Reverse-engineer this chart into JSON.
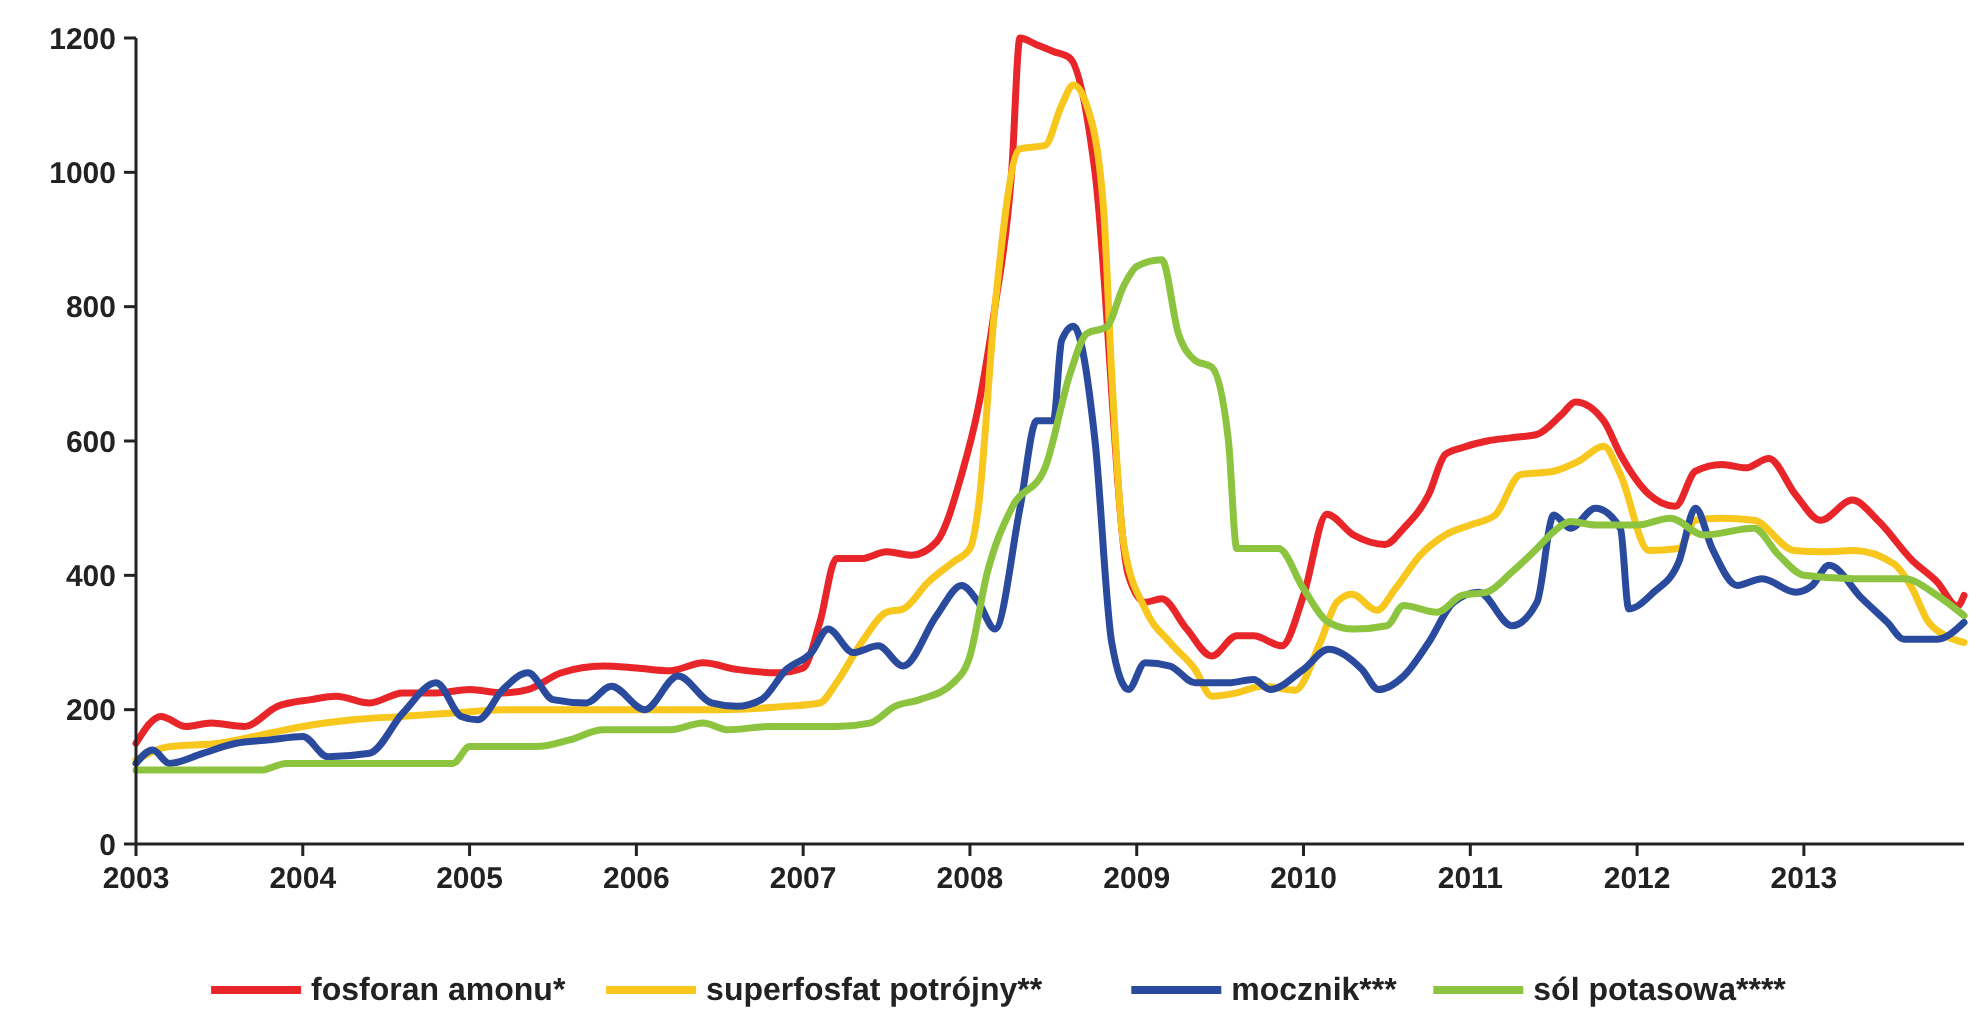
{
  "chart_data": {
    "type": "line",
    "xlim": [
      2003,
      2013.96
    ],
    "xticks": [
      2003,
      2004,
      2005,
      2006,
      2007,
      2008,
      2009,
      2010,
      2011,
      2012,
      2013
    ],
    "ylim": [
      0,
      1200
    ],
    "yticks": [
      0,
      200,
      400,
      600,
      800,
      1000,
      1200
    ],
    "grid": false,
    "legend": "bottom",
    "marker": "none",
    "line_style": "solid",
    "series": [
      {
        "name": "fosforan amonu*",
        "color": "#e8262a",
        "x": [
          2003.0,
          2003.15,
          2003.3,
          2003.45,
          2003.65,
          2003.85,
          2004.05,
          2004.2,
          2004.4,
          2004.6,
          2004.8,
          2005.0,
          2005.2,
          2005.35,
          2005.55,
          2005.8,
          2006.0,
          2006.2,
          2006.4,
          2006.6,
          2006.85,
          2007.0,
          2007.1,
          2007.2,
          2007.35,
          2007.5,
          2007.65,
          2007.8,
          2007.95,
          2008.05,
          2008.15,
          2008.25,
          2008.3,
          2008.4,
          2008.5,
          2008.6,
          2008.75,
          2008.95,
          2009.05,
          2009.15,
          2009.3,
          2009.45,
          2009.6,
          2009.7,
          2009.87,
          2010.0,
          2010.14,
          2010.3,
          2010.49,
          2010.6,
          2010.75,
          2010.85,
          2010.95,
          2011.1,
          2011.25,
          2011.4,
          2011.55,
          2011.63,
          2011.8,
          2011.9,
          2012.07,
          2012.23,
          2012.35,
          2012.51,
          2012.65,
          2012.79,
          2012.95,
          2013.1,
          2013.29,
          2013.45,
          2013.65,
          2013.8,
          2013.92,
          2013.96
        ],
        "values": [
          150,
          190,
          175,
          180,
          175,
          205,
          215,
          220,
          210,
          225,
          225,
          230,
          225,
          230,
          255,
          265,
          262,
          258,
          270,
          260,
          255,
          262,
          330,
          425,
          425,
          435,
          430,
          450,
          550,
          650,
          800,
          1000,
          1200,
          1190,
          1180,
          1170,
          1000,
          400,
          360,
          365,
          320,
          280,
          310,
          310,
          295,
          370,
          491,
          460,
          446,
          470,
          520,
          580,
          590,
          600,
          605,
          610,
          640,
          658,
          630,
          580,
          521,
          503,
          555,
          565,
          560,
          574,
          520,
          482,
          512,
          480,
          422,
          390,
          354,
          370
        ]
      },
      {
        "name": "superfosfat potrójny**",
        "color": "#f8c71d",
        "x": [
          2003.0,
          2003.2,
          2003.5,
          2003.8,
          2004.0,
          2004.3,
          2004.6,
          2004.9,
          2005.2,
          2005.6,
          2006.0,
          2006.5,
          2006.9,
          2007.1,
          2007.2,
          2007.35,
          2007.5,
          2007.6,
          2007.75,
          2007.9,
          2008.0,
          2008.05,
          2008.15,
          2008.3,
          2008.45,
          2008.55,
          2008.62,
          2008.7,
          2008.8,
          2008.85,
          2008.92,
          2009.05,
          2009.2,
          2009.35,
          2009.45,
          2009.6,
          2009.75,
          2009.95,
          2010.1,
          2010.2,
          2010.29,
          2010.44,
          2010.55,
          2010.7,
          2010.85,
          2011.0,
          2011.15,
          2011.3,
          2011.5,
          2011.65,
          2011.8,
          2011.9,
          2012.07,
          2012.25,
          2012.35,
          2012.5,
          2012.7,
          2012.94,
          2013.1,
          2013.3,
          2013.54,
          2013.65,
          2013.74,
          2013.85,
          2013.96
        ],
        "values": [
          125,
          145,
          150,
          165,
          175,
          185,
          190,
          195,
          200,
          200,
          200,
          200,
          205,
          210,
          240,
          300,
          345,
          350,
          390,
          420,
          440,
          500,
          800,
          1035,
          1040,
          1100,
          1130,
          1100,
          950,
          700,
          450,
          350,
          300,
          260,
          220,
          225,
          235,
          229,
          300,
          360,
          372,
          348,
          380,
          430,
          460,
          475,
          490,
          550,
          555,
          570,
          592,
          550,
          437,
          440,
          482,
          485,
          482,
          437,
          435,
          437,
          417,
          380,
          333,
          310,
          300
        ]
      },
      {
        "name": "mocznik***",
        "color": "#2a4a9e",
        "x": [
          2003.0,
          2003.1,
          2003.2,
          2003.4,
          2003.6,
          2003.8,
          2004.0,
          2004.15,
          2004.4,
          2004.6,
          2004.8,
          2004.95,
          2005.05,
          2005.2,
          2005.35,
          2005.5,
          2005.7,
          2005.85,
          2006.05,
          2006.25,
          2006.45,
          2006.6,
          2006.75,
          2006.9,
          2007.05,
          2007.15,
          2007.3,
          2007.45,
          2007.6,
          2007.8,
          2007.95,
          2008.05,
          2008.15,
          2008.3,
          2008.4,
          2008.5,
          2008.55,
          2008.62,
          2008.75,
          2008.85,
          2008.95,
          2009.05,
          2009.2,
          2009.35,
          2009.55,
          2009.7,
          2009.8,
          2010.0,
          2010.15,
          2010.35,
          2010.45,
          2010.6,
          2010.75,
          2010.9,
          2011.05,
          2011.25,
          2011.4,
          2011.5,
          2011.6,
          2011.75,
          2011.9,
          2011.95,
          2012.1,
          2012.25,
          2012.35,
          2012.45,
          2012.6,
          2012.75,
          2012.95,
          2013.05,
          2013.15,
          2013.35,
          2013.5,
          2013.6,
          2013.8,
          2013.96
        ],
        "values": [
          120,
          140,
          120,
          135,
          150,
          155,
          160,
          130,
          135,
          195,
          240,
          190,
          185,
          230,
          255,
          215,
          210,
          235,
          200,
          250,
          210,
          205,
          215,
          260,
          285,
          320,
          285,
          295,
          265,
          340,
          385,
          360,
          320,
          500,
          630,
          630,
          750,
          771,
          600,
          300,
          230,
          270,
          265,
          240,
          240,
          245,
          230,
          260,
          290,
          260,
          230,
          250,
          300,
          360,
          375,
          325,
          360,
          490,
          470,
          500,
          470,
          350,
          375,
          420,
          500,
          440,
          385,
          395,
          375,
          385,
          415,
          365,
          330,
          305,
          305,
          330
        ]
      },
      {
        "name": "sól potasowa****",
        "color": "#8cc43f",
        "x": [
          2003.0,
          2003.5,
          2003.75,
          2003.9,
          2004.5,
          2004.9,
          2005.0,
          2005.4,
          2005.6,
          2005.8,
          2006.2,
          2006.4,
          2006.55,
          2006.8,
          2007.2,
          2007.4,
          2007.55,
          2007.7,
          2007.9,
          2008.0,
          2008.1,
          2008.25,
          2008.45,
          2008.6,
          2008.7,
          2008.82,
          2008.92,
          2009.0,
          2009.15,
          2009.25,
          2009.35,
          2009.45,
          2009.55,
          2009.6,
          2009.85,
          2010.0,
          2010.15,
          2010.3,
          2010.5,
          2010.6,
          2010.8,
          2010.95,
          2011.1,
          2011.25,
          2011.4,
          2011.5,
          2011.6,
          2011.75,
          2012.0,
          2012.2,
          2012.4,
          2012.7,
          2012.85,
          2013.0,
          2013.3,
          2013.6,
          2013.8,
          2013.96
        ],
        "values": [
          110,
          110,
          110,
          120,
          120,
          120,
          145,
          145,
          155,
          170,
          170,
          180,
          170,
          175,
          175,
          180,
          205,
          215,
          240,
          280,
          400,
          500,
          560,
          700,
          760,
          770,
          830,
          860,
          870,
          760,
          720,
          710,
          600,
          440,
          440,
          380,
          330,
          320,
          325,
          355,
          345,
          370,
          375,
          405,
          440,
          465,
          480,
          475,
          475,
          485,
          460,
          470,
          430,
          400,
          395,
          395,
          370,
          340
        ]
      }
    ]
  }
}
